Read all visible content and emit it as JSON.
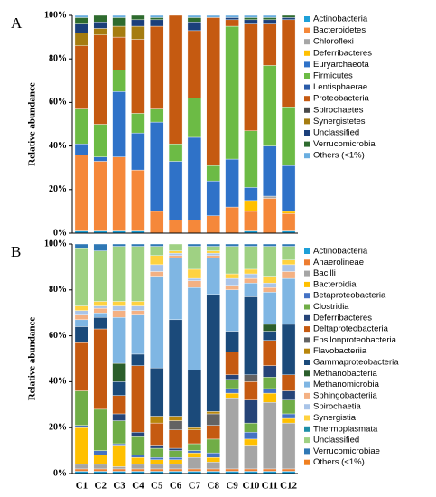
{
  "chart_data": [
    {
      "type": "stacked_bar",
      "panel_label": "A",
      "y_label": "Relative abundance",
      "ylim": [
        0,
        100
      ],
      "yticks": [
        {
          "value": 0,
          "label": "0%"
        },
        {
          "value": 20,
          "label": "20%"
        },
        {
          "value": 40,
          "label": "40%"
        },
        {
          "value": 60,
          "label": "60%"
        },
        {
          "value": 80,
          "label": "80%"
        },
        {
          "value": 100,
          "label": "100%"
        }
      ],
      "legend": "right",
      "series": [
        {
          "name": "Actinobacteria",
          "color": "#1ea0d8",
          "values": [
            1,
            1,
            1,
            1,
            0,
            0,
            0,
            0,
            0,
            1,
            0,
            1
          ]
        },
        {
          "name": "Bacteroidetes",
          "color": "#f5883a",
          "values": [
            35,
            32,
            34,
            28,
            10,
            6,
            6,
            8,
            12,
            9,
            16,
            8
          ]
        },
        {
          "name": "Chloroflexi",
          "color": "#a6a6a6",
          "values": [
            0,
            0,
            0,
            0,
            0,
            0,
            0,
            0,
            0,
            0,
            1,
            0
          ]
        },
        {
          "name": "Deferribacteres",
          "color": "#ffc000",
          "values": [
            0,
            0,
            0,
            0,
            0,
            0,
            0,
            0,
            0,
            5,
            0,
            1
          ]
        },
        {
          "name": "Euryarchaeota",
          "color": "#2f72c8",
          "values": [
            5,
            2,
            30,
            17,
            41,
            27,
            38,
            16,
            22,
            6,
            23,
            21
          ]
        },
        {
          "name": "Firmicutes",
          "color": "#6cbb45",
          "values": [
            16,
            15,
            10,
            9,
            6,
            8,
            18,
            7,
            61,
            26,
            37,
            27
          ]
        },
        {
          "name": "Lentisphaerae",
          "color": "#2a5ba8",
          "values": [
            0,
            0,
            0,
            0,
            0,
            0,
            0,
            0,
            0,
            0,
            0,
            0
          ]
        },
        {
          "name": "Proteobacteria",
          "color": "#c55a11",
          "values": [
            29,
            41,
            15,
            34,
            38,
            59,
            31,
            68,
            3,
            49,
            19,
            40
          ]
        },
        {
          "name": "Spirochaetes",
          "color": "#4a4a4a",
          "values": [
            0,
            0,
            0,
            0,
            0,
            0,
            0,
            0,
            0,
            0,
            0,
            0
          ]
        },
        {
          "name": "Synergistetes",
          "color": "#a57c10",
          "values": [
            6,
            3,
            5,
            6,
            0,
            0,
            0,
            0,
            0,
            0,
            0,
            0
          ]
        },
        {
          "name": "Unclassified",
          "color": "#1b3f7a",
          "values": [
            4,
            3,
            0,
            3,
            3,
            0,
            4,
            0,
            1,
            2,
            2,
            1
          ]
        },
        {
          "name": "Verrucomicrobia",
          "color": "#2e6b2e",
          "values": [
            3,
            3,
            4,
            2,
            1,
            0,
            2,
            0,
            0,
            1,
            1,
            1
          ]
        },
        {
          "name": "Others (<1%)",
          "color": "#6aaee0",
          "values": [
            1,
            0,
            1,
            0,
            1,
            0,
            1,
            1,
            1,
            1,
            1,
            0
          ]
        }
      ]
    },
    {
      "type": "stacked_bar",
      "panel_label": "B",
      "y_label": "Relative abundance",
      "categories": [
        "C1",
        "C2",
        "C3",
        "C4",
        "C5",
        "C6",
        "C7",
        "C8",
        "C9",
        "C10",
        "C11",
        "C12"
      ],
      "ylim": [
        0,
        100
      ],
      "yticks": [
        {
          "value": 0,
          "label": "0%"
        },
        {
          "value": 20,
          "label": "20%"
        },
        {
          "value": 40,
          "label": "40%"
        },
        {
          "value": 60,
          "label": "60%"
        },
        {
          "value": 80,
          "label": "80%"
        },
        {
          "value": 100,
          "label": "100%"
        }
      ],
      "legend": "right",
      "series": [
        {
          "name": "Actinobacteria",
          "color": "#1ea0d8",
          "values": [
            1,
            1,
            1,
            1,
            1,
            1,
            1,
            1,
            1,
            1,
            1,
            1
          ]
        },
        {
          "name": "Anaerolineae",
          "color": "#ed7d31",
          "values": [
            1,
            1,
            1,
            1,
            1,
            1,
            1,
            1,
            1,
            1,
            1,
            1
          ]
        },
        {
          "name": "Bacilli",
          "color": "#a5a5a5",
          "values": [
            2,
            2,
            1,
            2,
            2,
            2,
            5,
            3,
            31,
            10,
            29,
            20
          ]
        },
        {
          "name": "Bacteroidia",
          "color": "#ffc000",
          "values": [
            16,
            4,
            9,
            3,
            2,
            2,
            2,
            2,
            2,
            3,
            4,
            2
          ]
        },
        {
          "name": "Betaproteobacteria",
          "color": "#4472c4",
          "values": [
            1,
            2,
            1,
            1,
            1,
            1,
            1,
            2,
            2,
            3,
            2,
            2
          ]
        },
        {
          "name": "Clostridia",
          "color": "#70ad47",
          "values": [
            15,
            18,
            10,
            8,
            4,
            3,
            3,
            6,
            4,
            4,
            5,
            6
          ]
        },
        {
          "name": "Deferribacteres",
          "color": "#264478",
          "values": [
            0,
            0,
            3,
            2,
            1,
            1,
            0,
            0,
            2,
            10,
            5,
            4
          ]
        },
        {
          "name": "Deltaproteobacteria",
          "color": "#c55a11",
          "values": [
            21,
            35,
            8,
            29,
            10,
            8,
            6,
            6,
            10,
            8,
            11,
            7
          ]
        },
        {
          "name": "Epsilonproteobacteria",
          "color": "#636363",
          "values": [
            0,
            0,
            0,
            0,
            0,
            4,
            0,
            5,
            0,
            3,
            0,
            0
          ]
        },
        {
          "name": "Flavobacteriia",
          "color": "#b8860b",
          "values": [
            0,
            0,
            0,
            0,
            3,
            2,
            1,
            1,
            0,
            0,
            0,
            0
          ]
        },
        {
          "name": "Gammaproteobacteria",
          "color": "#1b4a7a",
          "values": [
            7,
            5,
            6,
            5,
            21,
            42,
            25,
            51,
            9,
            34,
            4,
            22
          ]
        },
        {
          "name": "Methanobacteria",
          "color": "#2b5e2b",
          "values": [
            0,
            0,
            8,
            0,
            0,
            0,
            0,
            0,
            0,
            0,
            3,
            0
          ]
        },
        {
          "name": "Methanomicrobia",
          "color": "#7fb6e3",
          "values": [
            3,
            2,
            20,
            17,
            40,
            27,
            36,
            16,
            18,
            6,
            14,
            20
          ]
        },
        {
          "name": "Sphingobacteriia",
          "color": "#f4b183",
          "values": [
            2,
            2,
            3,
            2,
            2,
            1,
            3,
            1,
            2,
            2,
            2,
            3
          ]
        },
        {
          "name": "Spirochaetia",
          "color": "#a9c4e8",
          "values": [
            2,
            1,
            2,
            2,
            3,
            1,
            1,
            1,
            3,
            2,
            2,
            3
          ]
        },
        {
          "name": "Synergistia",
          "color": "#ffd23f",
          "values": [
            2,
            2,
            2,
            2,
            4,
            1,
            4,
            1,
            2,
            2,
            3,
            2
          ]
        },
        {
          "name": "Thermoplasmata",
          "color": "#1d8fa8",
          "values": [
            0,
            0,
            0,
            0,
            0,
            0,
            0,
            0,
            0,
            0,
            0,
            0
          ]
        },
        {
          "name": "Unclassified",
          "color": "#9fd183",
          "values": [
            25,
            22,
            24,
            24,
            4,
            3,
            10,
            2,
            12,
            10,
            13,
            6
          ]
        },
        {
          "name": "Verrucomicrobiae",
          "color": "#2f78b5",
          "values": [
            2,
            3,
            1,
            1,
            1,
            0,
            1,
            1,
            1,
            1,
            1,
            1
          ]
        },
        {
          "name": "Others (<1%)",
          "color": "#f07f20",
          "values": [
            0,
            0,
            0,
            0,
            0,
            0,
            0,
            0,
            0,
            0,
            0,
            0
          ]
        }
      ]
    }
  ]
}
